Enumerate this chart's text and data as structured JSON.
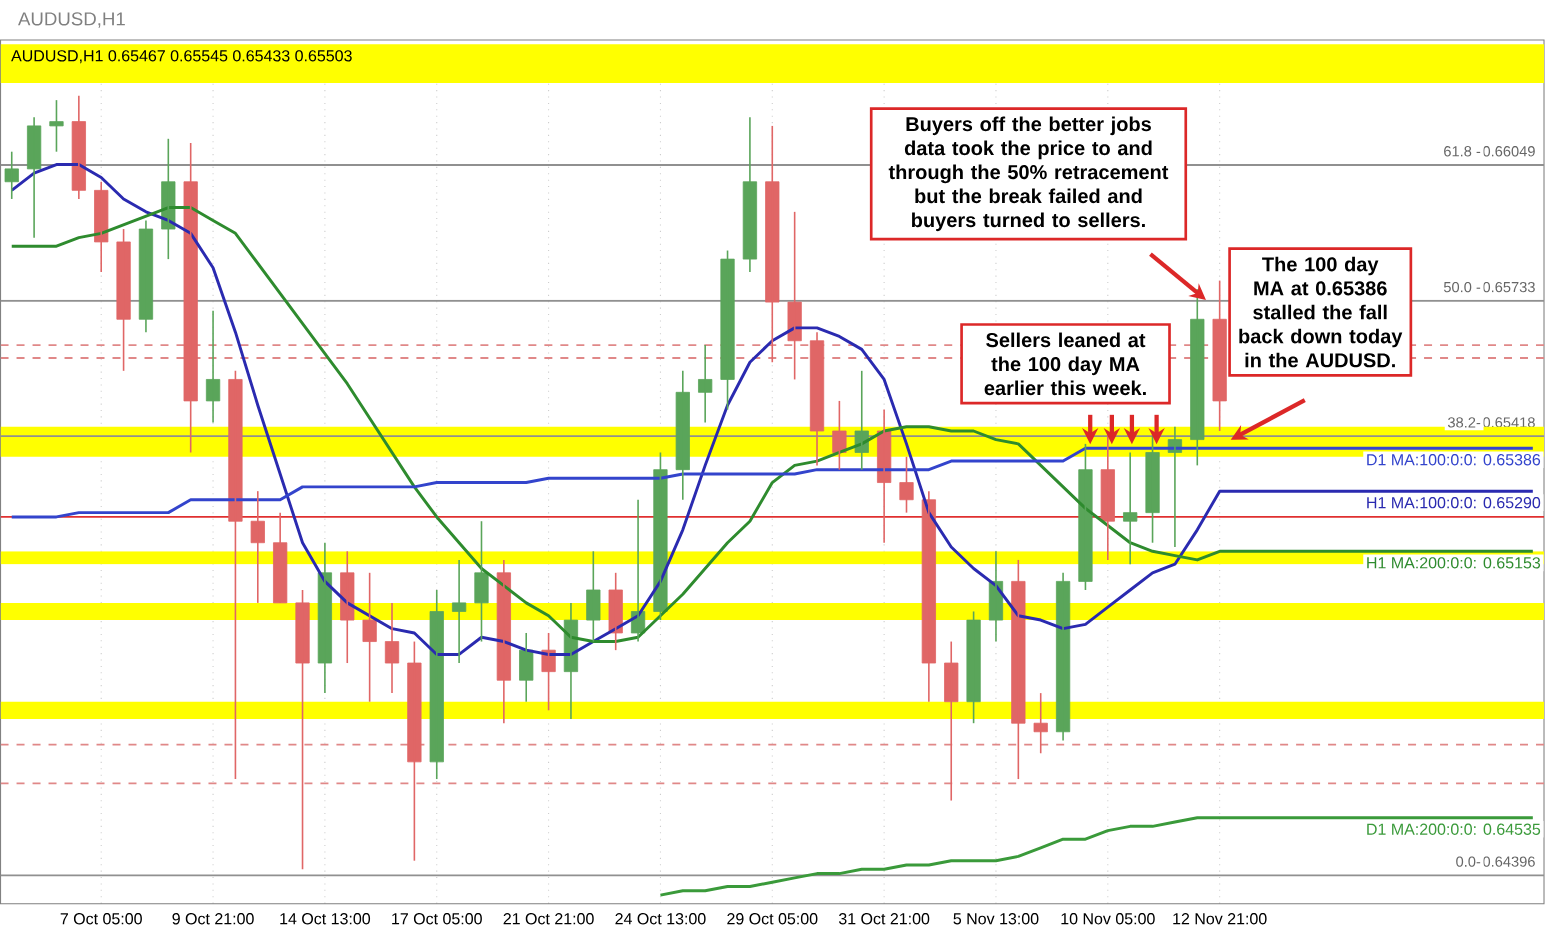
{
  "chart_data": {
    "type": "candlestick",
    "title": "AUDUSD,H1 0.65467 0.65545 0.65433 0.65503",
    "subtitle": "AUDUSD,H1",
    "categories": [
      null,
      null,
      null,
      null,
      "7 Oct 05:00",
      null,
      null,
      null,
      null,
      "9 Oct 21:00",
      null,
      null,
      null,
      null,
      "14 Oct 13:00",
      null,
      null,
      null,
      null,
      "17 Oct 05:00",
      null,
      null,
      null,
      null,
      "21 Oct 21:00",
      null,
      null,
      null,
      null,
      "24 Oct 13:00",
      null,
      null,
      null,
      null,
      "29 Oct 05:00",
      null,
      null,
      null,
      null,
      "31 Oct 21:00",
      null,
      null,
      null,
      null,
      "5 Nov 13:00",
      null,
      null,
      null,
      null,
      "10 Nov 05:00",
      null,
      null,
      null,
      null,
      "12 Nov 21:00",
      null,
      null,
      null,
      null,
      null,
      null,
      null,
      null,
      null,
      null,
      null,
      null,
      null,
      null
    ],
    "ohlc": [
      [
        0.6601,
        0.6608,
        0.6597,
        0.6604
      ],
      [
        0.6604,
        0.6616,
        0.6588,
        0.6614
      ],
      [
        0.6614,
        0.662,
        0.6608,
        0.6615
      ],
      [
        0.6615,
        0.6621,
        0.6597,
        0.6599
      ],
      [
        0.6599,
        0.6601,
        0.658,
        0.6587
      ],
      [
        0.6587,
        0.659,
        0.6557,
        0.6569
      ],
      [
        0.6569,
        0.6592,
        0.6566,
        0.659
      ],
      [
        0.659,
        0.6611,
        0.6583,
        0.6601
      ],
      [
        0.6601,
        0.661,
        0.6538,
        0.655
      ],
      [
        0.655,
        0.6571,
        0.6545,
        0.6555
      ],
      [
        0.6555,
        0.6557,
        0.6462,
        0.6522
      ],
      [
        0.6522,
        0.6529,
        0.6503,
        0.6517
      ],
      [
        0.6517,
        0.6524,
        0.6503,
        0.6503
      ],
      [
        0.6503,
        0.6506,
        0.6441,
        0.6489
      ],
      [
        0.6489,
        0.6517,
        0.6482,
        0.651
      ],
      [
        0.651,
        0.6515,
        0.6489,
        0.6499
      ],
      [
        0.6499,
        0.651,
        0.648,
        0.6494
      ],
      [
        0.6494,
        0.6503,
        0.6482,
        0.6489
      ],
      [
        0.6489,
        0.6494,
        0.6443,
        0.6466
      ],
      [
        0.6466,
        0.6506,
        0.6462,
        0.6501
      ],
      [
        0.6501,
        0.6513,
        0.6489,
        0.6503
      ],
      [
        0.6503,
        0.6522,
        0.6494,
        0.651
      ],
      [
        0.651,
        0.6513,
        0.6475,
        0.6485
      ],
      [
        0.6485,
        0.6496,
        0.648,
        0.6492
      ],
      [
        0.6492,
        0.6496,
        0.6478,
        0.6487
      ],
      [
        0.6487,
        0.6503,
        0.6476,
        0.6499
      ],
      [
        0.6499,
        0.6515,
        0.6494,
        0.6506
      ],
      [
        0.6506,
        0.651,
        0.6492,
        0.6496
      ],
      [
        0.6496,
        0.6527,
        0.6494,
        0.6501
      ],
      [
        0.6501,
        0.6538,
        0.6499,
        0.6534
      ],
      [
        0.6534,
        0.6557,
        0.6527,
        0.6552
      ],
      [
        0.6552,
        0.6563,
        0.6545,
        0.6555
      ],
      [
        0.6555,
        0.6585,
        0.6548,
        0.6583
      ],
      [
        0.6583,
        0.6616,
        0.658,
        0.6601
      ],
      [
        0.6601,
        0.6614,
        0.6559,
        0.6573
      ],
      [
        0.6573,
        0.6594,
        0.6555,
        0.6564
      ],
      [
        0.6564,
        0.6566,
        0.6535,
        0.6543
      ],
      [
        0.6543,
        0.655,
        0.6534,
        0.6538
      ],
      [
        0.6538,
        0.6557,
        0.6534,
        0.6543
      ],
      [
        0.6543,
        0.6548,
        0.6517,
        0.6531
      ],
      [
        0.6531,
        0.6537,
        0.6524,
        0.6527
      ],
      [
        0.6527,
        0.6529,
        0.648,
        0.6489
      ],
      [
        0.6489,
        0.6494,
        0.6457,
        0.648
      ],
      [
        0.648,
        0.6501,
        0.6475,
        0.6499
      ],
      [
        0.6499,
        0.6515,
        0.6494,
        0.6508
      ],
      [
        0.6508,
        0.6513,
        0.6462,
        0.6475
      ],
      [
        0.6475,
        0.6482,
        0.6468,
        0.6473
      ],
      [
        0.6473,
        0.651,
        0.6471,
        0.6508
      ],
      [
        0.6508,
        0.654,
        0.6506,
        0.6534
      ],
      [
        0.6534,
        0.6542,
        0.6513,
        0.6522
      ],
      [
        0.6522,
        0.6538,
        0.6512,
        0.6524
      ],
      [
        0.6524,
        0.6542,
        0.6517,
        0.6538
      ],
      [
        0.6538,
        0.6544,
        0.6516,
        0.6541
      ],
      [
        0.6541,
        0.6576,
        0.6535,
        0.6569
      ],
      [
        0.6569,
        0.6578,
        0.6543,
        0.655
      ],
      null,
      null,
      null,
      null,
      null,
      null,
      null,
      null,
      null,
      null,
      null,
      null,
      null,
      null
    ],
    "colors": [
      "#5aa55a",
      "#5aa55a",
      "#5aa55a",
      "#e06666",
      "#e06666",
      "#e06666",
      "#5aa55a",
      "#5aa55a",
      "#e06666",
      "#5aa55a",
      "#e06666",
      "#e06666",
      "#e06666",
      "#e06666",
      "#5aa55a",
      "#e06666",
      "#e06666",
      "#e06666",
      "#e06666",
      "#5aa55a",
      "#5aa55a",
      "#5aa55a",
      "#e06666",
      "#5aa55a",
      "#e06666",
      "#5aa55a",
      "#5aa55a",
      "#e06666",
      "#5aa55a",
      "#5aa55a",
      "#5aa55a",
      "#5aa55a",
      "#5aa55a",
      "#5aa55a",
      "#e06666",
      "#e06666",
      "#e06666",
      "#e06666",
      "#5aa55a",
      "#e06666",
      "#e06666",
      "#e06666",
      "#e06666",
      "#5aa55a",
      "#5aa55a",
      "#e06666",
      "#e06666",
      "#5aa55a",
      "#5aa55a",
      "#e06666",
      "#5aa55a",
      "#5aa55a",
      "#5aa55a",
      "#5aa55a",
      "#e06666",
      null,
      null,
      null,
      null,
      null,
      null,
      null,
      null,
      null,
      null,
      null,
      null,
      null,
      null
    ],
    "series": [
      {
        "type": "line",
        "name": "H1 MA:100:0:0: 0.65290",
        "color": "#2a2ab0",
        "values": [
          0.6599,
          0.6603,
          0.6605,
          0.6605,
          0.6602,
          0.6597,
          0.6594,
          0.6592,
          0.6589,
          0.6581,
          0.6566,
          0.6549,
          0.6533,
          0.6517,
          0.6508,
          0.6503,
          0.65,
          0.6497,
          0.6496,
          0.6491,
          0.6491,
          0.6495,
          0.6494,
          0.6492,
          0.6491,
          0.6491,
          0.6494,
          0.6497,
          0.65,
          0.6508,
          0.652,
          0.6535,
          0.6549,
          0.6559,
          0.6564,
          0.6567,
          0.6567,
          0.6565,
          0.6562,
          0.6555,
          0.654,
          0.6524,
          0.6516,
          0.6511,
          0.6507,
          0.65,
          0.6499,
          0.6497,
          0.6498,
          0.6502,
          0.6506,
          0.651,
          0.6512,
          0.652,
          0.6529,
          0.6529,
          0.6529,
          0.6529,
          0.6529,
          0.6529,
          0.6529,
          0.6529,
          0.6529,
          0.6529,
          0.6529,
          0.6529,
          0.6529,
          0.6529,
          0.6529
        ]
      },
      {
        "type": "line",
        "name": "H1 MA:200:0:0: 0.65153",
        "color": "#2e8b2e",
        "values": [
          0.6586,
          0.6586,
          0.6586,
          0.6588,
          0.6589,
          0.6591,
          0.6593,
          0.6595,
          0.6595,
          0.6592,
          0.6589,
          0.6582,
          0.6575,
          0.6568,
          0.6561,
          0.6554,
          0.6546,
          0.6538,
          0.653,
          0.6523,
          0.6517,
          0.6511,
          0.6507,
          0.6503,
          0.65,
          0.6495,
          0.6494,
          0.6494,
          0.6495,
          0.65,
          0.6505,
          0.6511,
          0.6517,
          0.6522,
          0.6531,
          0.6535,
          0.6536,
          0.6538,
          0.654,
          0.6543,
          0.6544,
          0.6544,
          0.6543,
          0.6543,
          0.6541,
          0.654,
          0.6535,
          0.653,
          0.6525,
          0.6521,
          0.6517,
          0.6515,
          0.6514,
          0.6513,
          0.6515,
          0.6515,
          0.6515,
          0.6515,
          0.6515,
          0.6515,
          0.6515,
          0.6515,
          0.6515,
          0.6515,
          0.6515,
          0.6515,
          0.6515,
          0.6515,
          0.6515
        ]
      },
      {
        "type": "line",
        "name": "D1 MA:100:0:0: 0.65386",
        "color": "#3344cc",
        "values": [
          0.6523,
          0.6523,
          0.6523,
          0.6524,
          0.6524,
          0.6524,
          0.6524,
          0.6524,
          0.6527,
          0.6527,
          0.6527,
          0.6527,
          0.6527,
          0.653,
          0.653,
          0.653,
          0.653,
          0.653,
          0.653,
          0.6531,
          0.6531,
          0.6531,
          0.6531,
          0.6531,
          0.6532,
          0.6532,
          0.6532,
          0.6532,
          0.6532,
          0.6532,
          0.6533,
          0.6533,
          0.6533,
          0.6533,
          0.6533,
          0.6533,
          0.6534,
          0.6534,
          0.6534,
          0.6534,
          0.6534,
          0.6534,
          0.6536,
          0.6536,
          0.6536,
          0.6536,
          0.6536,
          0.6536,
          0.6539,
          0.6539,
          0.6539,
          0.6539,
          0.6539,
          0.6539,
          0.6539,
          0.6539,
          0.6539,
          0.6539,
          0.6539,
          0.6539,
          0.6539,
          0.6539,
          0.6539,
          0.6539,
          0.6539,
          0.6539,
          0.6539,
          0.6539,
          0.6539
        ]
      },
      {
        "type": "line",
        "name": "D1 MA:200:0:0: 0.64535",
        "color": "#3a9a3a",
        "values": [
          null,
          null,
          null,
          null,
          null,
          null,
          null,
          null,
          null,
          null,
          null,
          null,
          null,
          null,
          null,
          null,
          null,
          null,
          null,
          null,
          null,
          null,
          null,
          null,
          null,
          null,
          null,
          null,
          null,
          0.6435,
          0.6436,
          0.6436,
          0.6437,
          0.6437,
          0.6438,
          0.6439,
          0.644,
          0.644,
          0.6441,
          0.6441,
          0.6442,
          0.6442,
          0.6443,
          0.6443,
          0.6443,
          0.6444,
          0.6446,
          0.6448,
          0.6448,
          0.645,
          0.6451,
          0.6451,
          0.6452,
          0.6453,
          0.6453,
          0.6453,
          0.6453,
          0.6453,
          0.6453,
          0.6453,
          0.6453,
          0.6453,
          0.6453,
          0.6453,
          0.6453,
          0.6453,
          0.6453,
          0.6453,
          0.6453
        ]
      }
    ],
    "ylim": [
      0.6433,
      0.6634
    ],
    "grid": "x",
    "yticks": [
      0.64396,
      0.65418,
      0.65733,
      0.66049
    ],
    "bands": [
      {
        "axis": "y",
        "from": 0.6624,
        "to": 0.6633,
        "color": "#ffff00"
      },
      {
        "axis": "y",
        "from": 0.6537,
        "to": 0.6544,
        "color": "#ffff00"
      },
      {
        "axis": "y",
        "from": 0.6512,
        "to": 0.6515,
        "color": "#ffff00"
      },
      {
        "axis": "y",
        "from": 0.6499,
        "to": 0.6503,
        "color": "#ffff00"
      },
      {
        "axis": "y",
        "from": 0.6476,
        "to": 0.648,
        "color": "#ffff00"
      }
    ],
    "ref_lines": [
      {
        "axis": "y",
        "value": 0.66049,
        "color": "#909090",
        "line_style": "solid"
      },
      {
        "axis": "y",
        "value": 0.65733,
        "color": "#909090",
        "line_style": "solid"
      },
      {
        "axis": "y",
        "value": 0.65418,
        "color": "#909090",
        "line_style": "solid"
      },
      {
        "axis": "y",
        "value": 0.64396,
        "color": "#909090",
        "line_style": "solid"
      },
      {
        "axis": "y",
        "value": 0.6523,
        "color": "#e03030",
        "line_style": "solid"
      },
      {
        "axis": "y",
        "value": 0.6563,
        "color": "#e08888",
        "line_style": "dashed"
      },
      {
        "axis": "y",
        "value": 0.656,
        "color": "#e08888",
        "line_style": "dashed"
      },
      {
        "axis": "y",
        "value": 0.647,
        "color": "#e08888",
        "line_style": "dashed"
      },
      {
        "axis": "y",
        "value": 0.6461,
        "color": "#e08888",
        "line_style": "dashed"
      }
    ],
    "annotations": [
      {
        "text": "0.0-",
        "y": 0.64396
      },
      {
        "text": "38.2-",
        "y": 0.65418
      },
      {
        "text": "50.0 -",
        "y": 0.65733
      },
      {
        "text": "61.8 -",
        "y": 0.66049
      },
      "Buyers off the better jobs data took the price to and through the 50% retracement but the break failed and buyers turned to sellers.",
      "Sellers leaned at the 100 day MA earlier this week.",
      "The 100 day MA at 0.65386 stalled the fall back down today in the AUDUSD."
    ]
  }
}
